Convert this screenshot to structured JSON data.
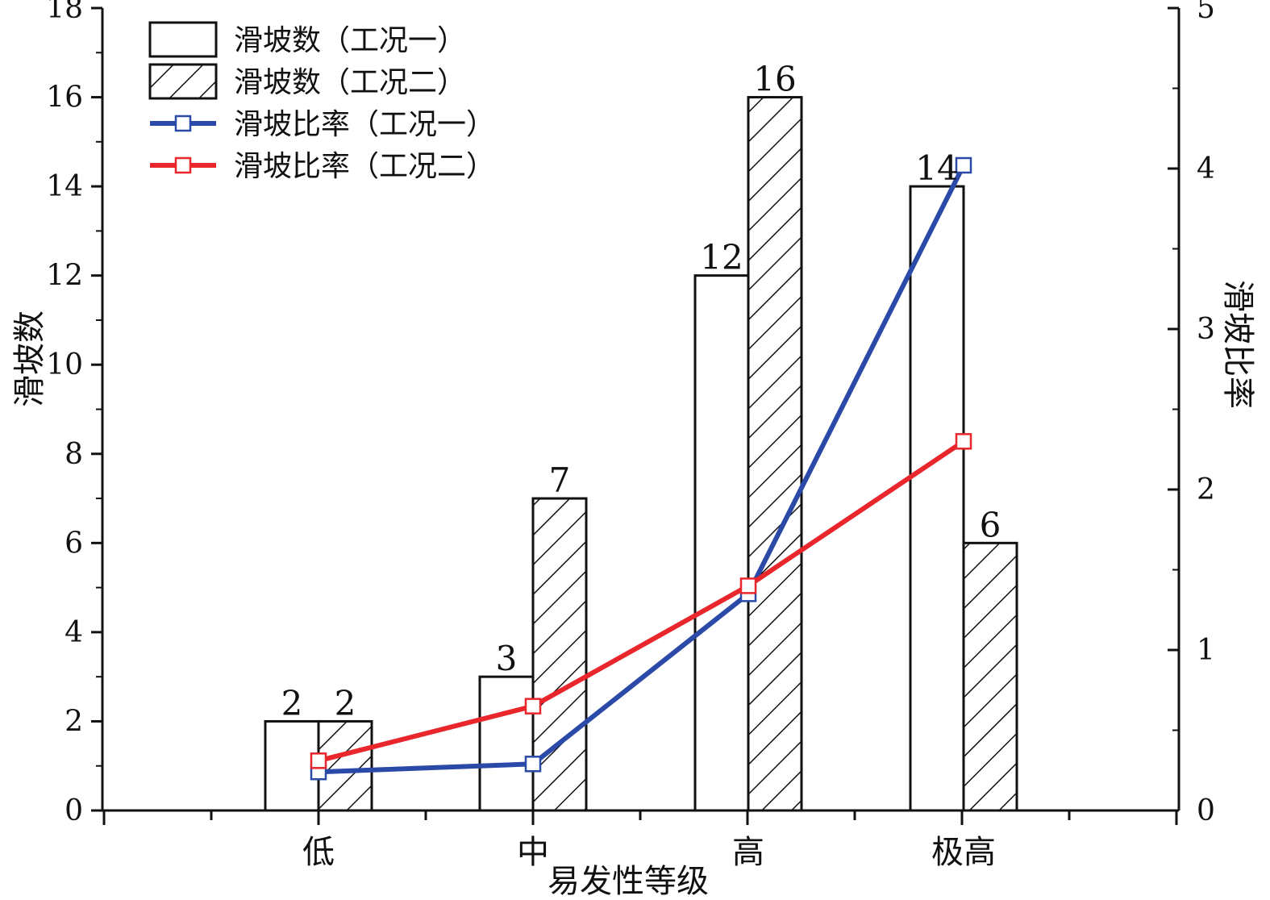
{
  "chart_data": {
    "type": "bar",
    "categories": [
      "低",
      "中",
      "高",
      "极高"
    ],
    "xlabel": "易发性等级",
    "ylabel": "滑坡数",
    "y2label": "滑坡比率",
    "ylim": [
      0,
      18
    ],
    "y2lim": [
      0,
      5
    ],
    "yticks": [
      0,
      2,
      4,
      6,
      8,
      10,
      12,
      14,
      16,
      18
    ],
    "y2ticks": [
      0,
      1,
      2,
      3,
      4,
      5
    ],
    "grid": false,
    "legend_position": "top-left",
    "series": [
      {
        "name": "滑坡数（工况一）",
        "kind": "bar",
        "pattern": "none",
        "values": [
          2,
          3,
          12,
          14
        ]
      },
      {
        "name": "滑坡数（工况二）",
        "kind": "bar",
        "pattern": "hatch",
        "values": [
          2,
          7,
          16,
          6
        ]
      },
      {
        "name": "滑坡比率（工况一）",
        "kind": "line",
        "axis": "right",
        "color": "#2b4aa8",
        "values": [
          0.24,
          0.29,
          1.35,
          4.02
        ]
      },
      {
        "name": "滑坡比率（工况二）",
        "kind": "line",
        "axis": "right",
        "color": "#e8262c",
        "values": [
          0.31,
          0.65,
          1.4,
          2.3
        ]
      }
    ]
  }
}
